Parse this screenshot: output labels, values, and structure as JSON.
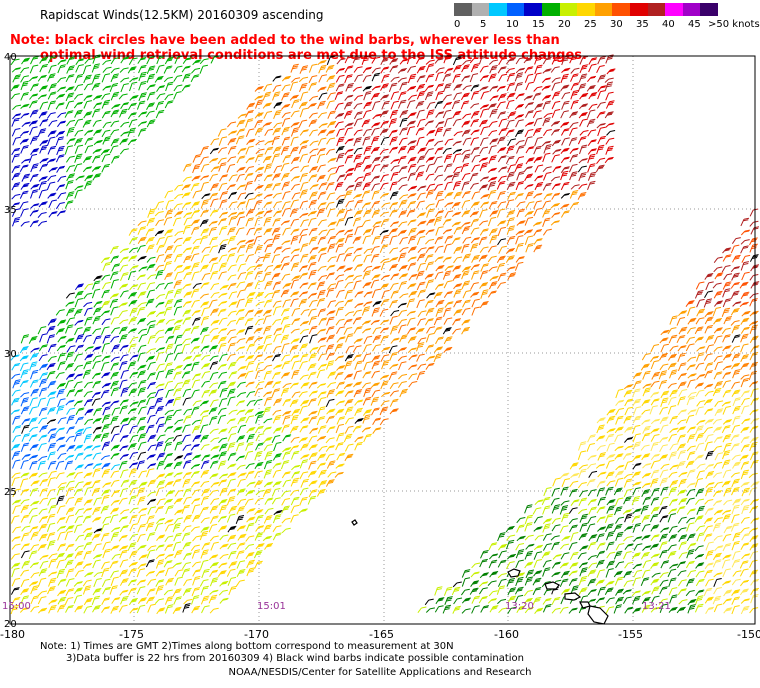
{
  "title": "Rapidscat Winds(12.5KM) 20160309 ascending",
  "note": {
    "line1": "Note: black circles have been added to the wind barbs, wherever less than",
    "line2": "optimal wind retrieval conditions are met due to the ISS attitude changes."
  },
  "speed_scale": {
    "unit": "knots",
    "colors": [
      "#606060",
      "#b0b0b0",
      "#00c8ff",
      "#0060ff",
      "#0000c8",
      "#00b000",
      "#c8f000",
      "#ffd700",
      "#ffa000",
      "#ff5000",
      "#e00000",
      "#b02020",
      "#ff00ff",
      "#a000c8",
      "#3a006a"
    ],
    "labels": [
      "0",
      "5",
      "10",
      "15",
      "20",
      "25",
      "30",
      "35",
      "40",
      "45",
      ">50 knots"
    ]
  },
  "map": {
    "lat_labels": [
      "40",
      "35",
      "30",
      "25",
      "20"
    ],
    "lon_labels": [
      "-180",
      "-175",
      "-170",
      "-165",
      "-160",
      "-155",
      "-150"
    ],
    "pass_times": [
      "15:00",
      "15:01",
      "13:20",
      "13:21"
    ]
  },
  "footer": {
    "line1": "Note: 1) Times are GMT 2)Times along bottom correspond to measurement at 30N",
    "line2": "3)Data buffer is 22 hrs from 20160309 4) Black wind barbs indicate possible contamination",
    "credit": "NOAA/NESDIS/Center for Satellite Applications and Research"
  }
}
